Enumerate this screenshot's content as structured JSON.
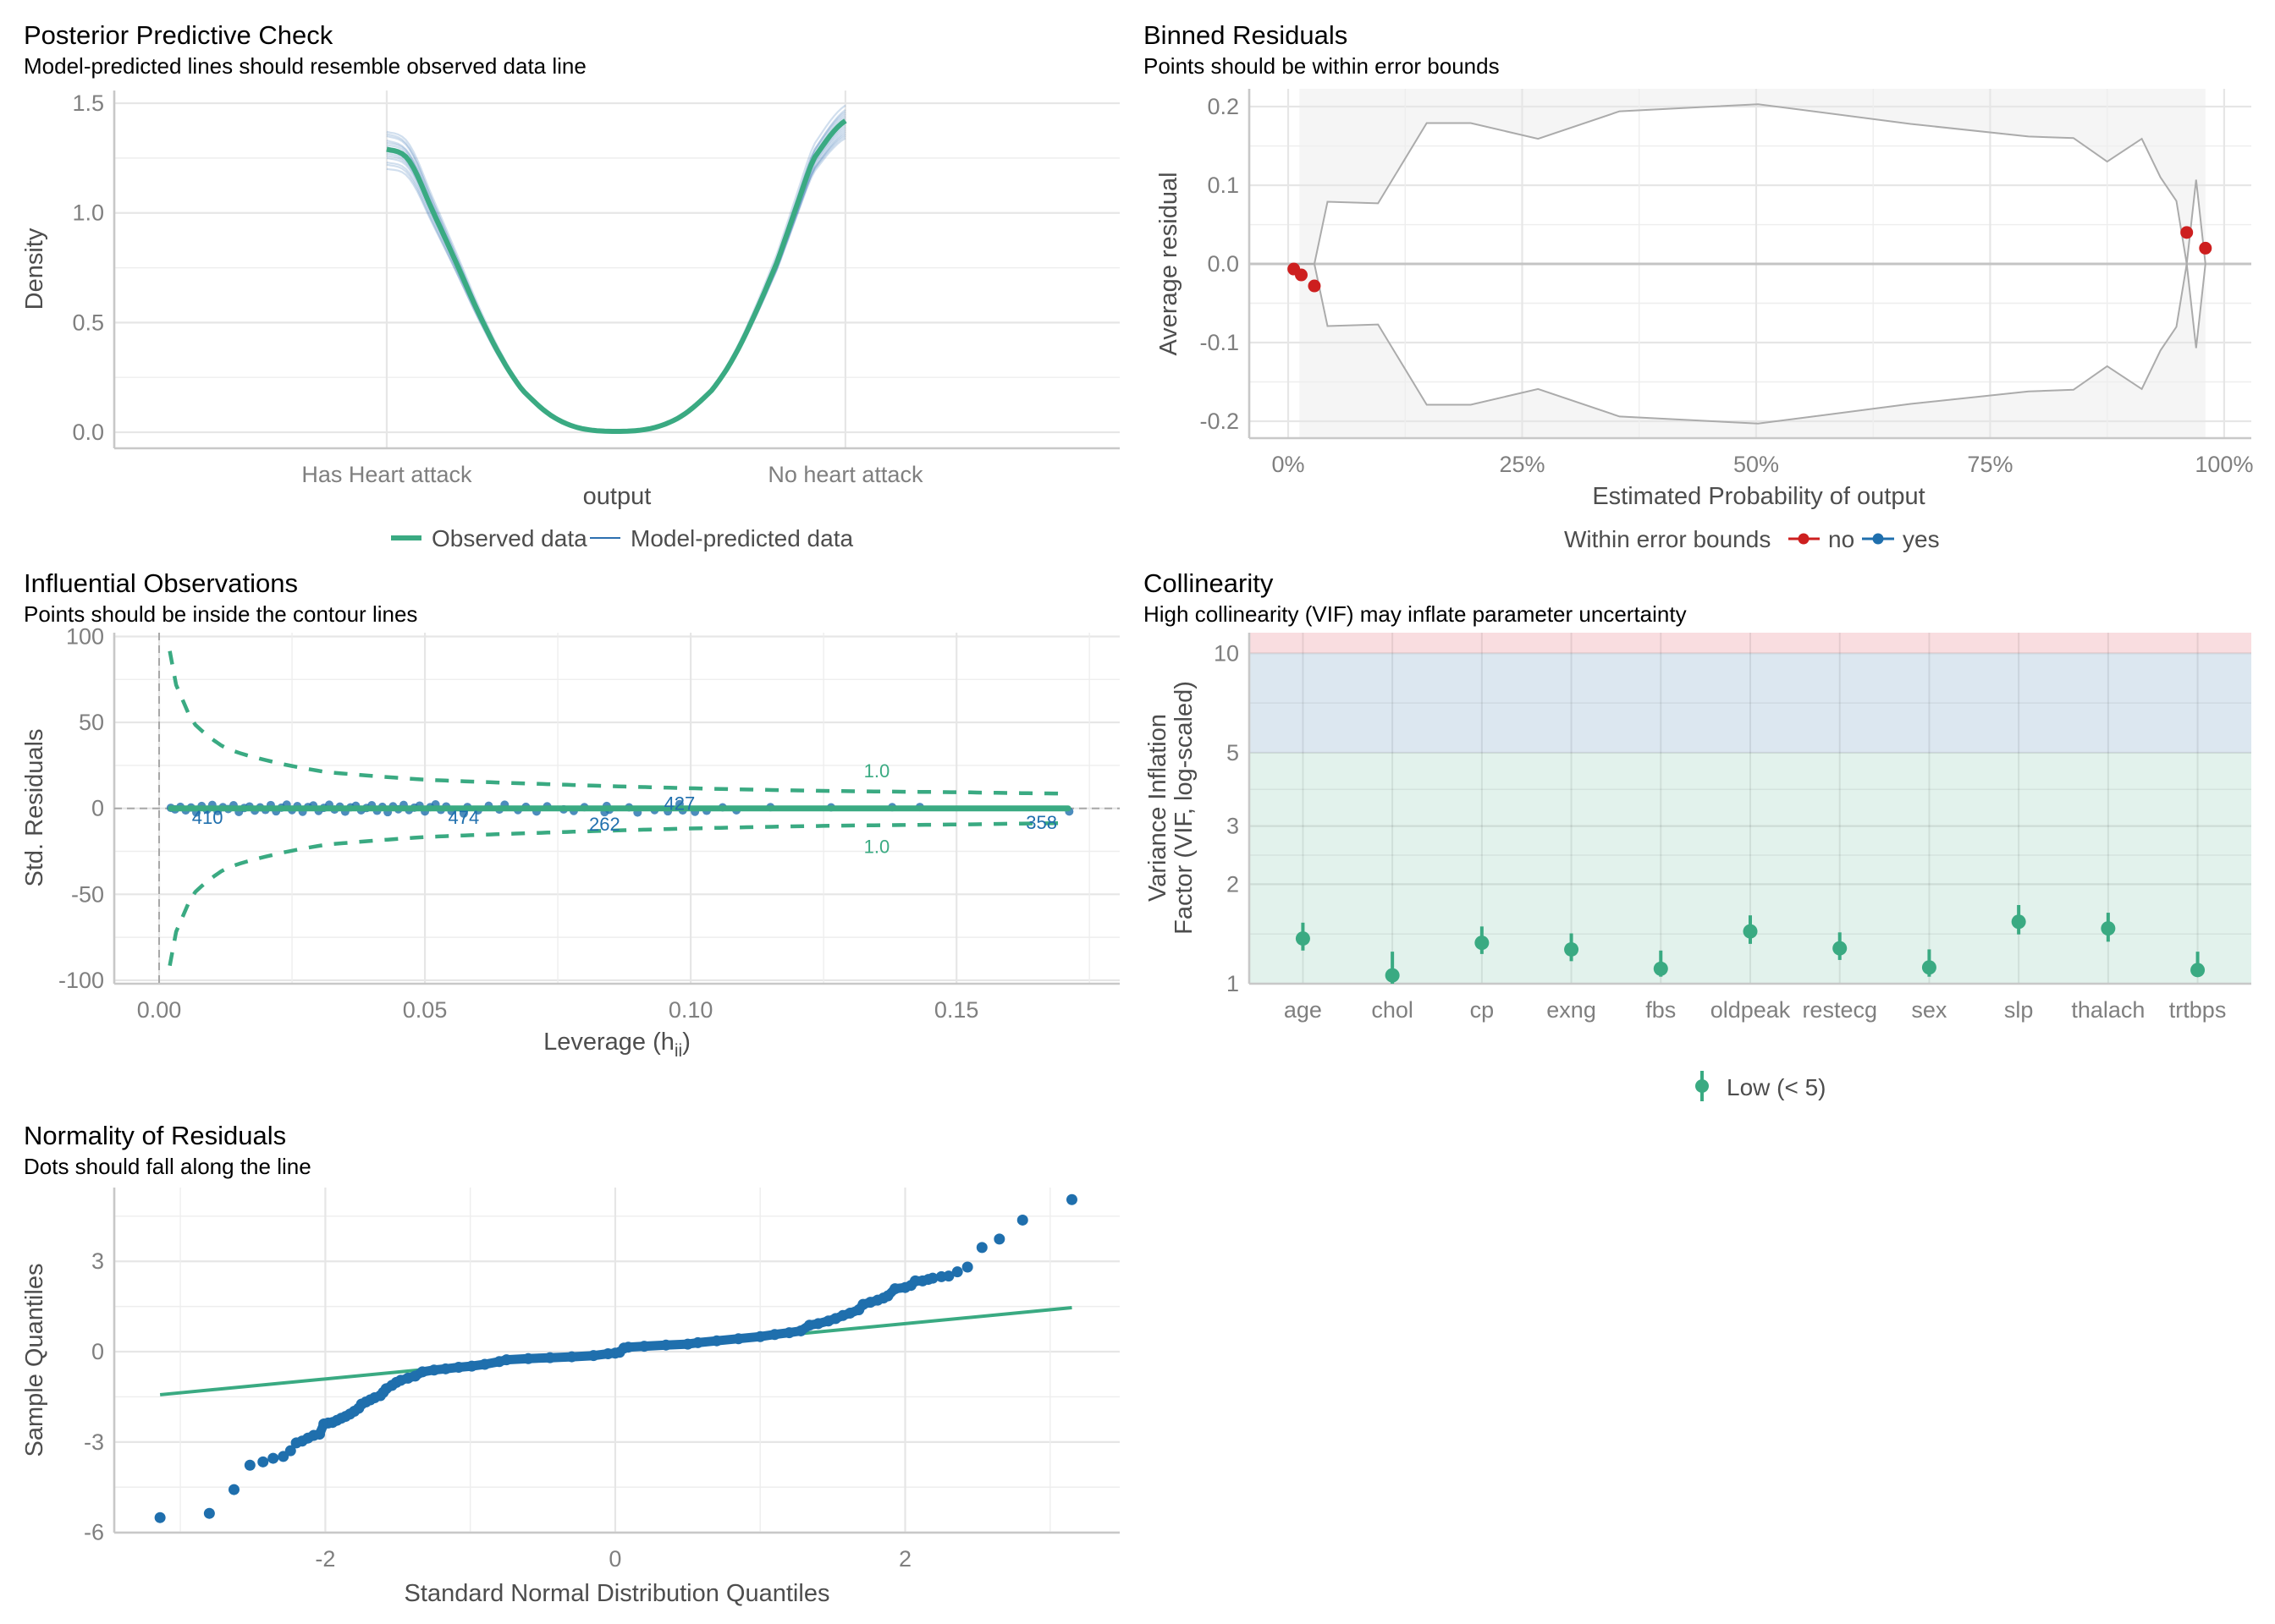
{
  "colors": {
    "observed": "#3aaa82",
    "predicted": "#2c6fb0",
    "points": "#1f6fad",
    "out_of_bounds": "#cd1f1f",
    "in_bounds": "#1f6fad",
    "band_grey": "#f5f5f5",
    "boundary": "#ababab",
    "vif_low": "#e2f2ec",
    "vif_moderate": "#dce7f0",
    "vif_high": "#f9dde0"
  },
  "chart_data": [
    {
      "id": "ppc",
      "type": "line",
      "title": "Posterior Predictive Check",
      "subtitle": "Model-predicted lines should resemble observed data line",
      "xlabel": "output",
      "ylabel": "Density",
      "categories": [
        "Has Heart attack",
        "No heart attack"
      ],
      "x_range": [
        -0.594,
        1.598
      ],
      "ylim": [
        -0.073,
        1.558
      ],
      "yticks": [
        0.0,
        0.5,
        1.0,
        1.5
      ],
      "ytick_labels": [
        "0.0",
        "0.5",
        "1.0",
        "1.5"
      ],
      "grid": true,
      "observed": {
        "x": [
          0,
          0.048,
          0.1,
          0.15,
          0.2,
          0.25,
          0.295,
          0.358,
          0.42,
          0.5,
          0.58,
          0.645,
          0.71,
          0.756,
          0.804,
          0.852,
          0.89,
          0.93,
          1.0
        ],
        "y": [
          1.29,
          1.24,
          1.01,
          0.78,
          0.545,
          0.34,
          0.194,
          0.077,
          0.019,
          0.004,
          0.019,
          0.077,
          0.194,
          0.34,
          0.545,
          0.78,
          1.01,
          1.245,
          1.42
        ]
      },
      "predicted_peaks": [
        [
          1.2,
          1.47
        ],
        [
          1.23,
          1.44
        ],
        [
          1.25,
          1.42
        ],
        [
          1.27,
          1.4
        ],
        [
          1.28,
          1.38
        ],
        [
          1.3,
          1.36
        ],
        [
          1.31,
          1.45
        ],
        [
          1.33,
          1.34
        ],
        [
          1.35,
          1.41
        ],
        [
          1.37,
          1.49
        ],
        [
          1.26,
          1.43
        ],
        [
          1.29,
          1.39
        ],
        [
          1.32,
          1.46
        ],
        [
          1.22,
          1.37
        ],
        [
          1.36,
          1.35
        ]
      ],
      "legend": {
        "position": "bottom",
        "items": [
          {
            "label": "Observed data",
            "series": "observed"
          },
          {
            "label": "Model-predicted data",
            "series": "predicted"
          }
        ]
      }
    },
    {
      "id": "binned",
      "type": "scatter",
      "title": "Binned Residuals",
      "subtitle": "Points should be within error bounds",
      "xlabel": "Estimated Probability of output",
      "ylabel": "Average residual",
      "xlim": [
        -4.16,
        102.9
      ],
      "ylim": [
        -0.2215,
        0.2226
      ],
      "xticks": [
        0,
        25,
        50,
        75,
        100
      ],
      "xtick_labels": [
        "0%",
        "25%",
        "50%",
        "75%",
        "100%"
      ],
      "xminor": [
        12.5,
        37.5,
        62.5,
        87.5
      ],
      "yticks": [
        -0.2,
        -0.1,
        0.0,
        0.1,
        0.2
      ],
      "ytick_labels": [
        "-0.2",
        "-0.1",
        "0.0",
        "0.1",
        "0.2"
      ],
      "yminor": [
        -0.15,
        -0.05,
        0.05,
        0.15
      ],
      "shaded_range": [
        1.2,
        98.0
      ],
      "bound_x": [
        0.6,
        2.8,
        4.2,
        9.6,
        14.8,
        19.5,
        26.7,
        35.4,
        50.2,
        66.5,
        79.1,
        83.9,
        87.5,
        91.2,
        93.2,
        94.9,
        96.0,
        97.0,
        98.0
      ],
      "bound_se": [
        0.0,
        0.0,
        0.079,
        0.077,
        0.179,
        0.179,
        0.159,
        0.194,
        0.203,
        0.178,
        0.162,
        0.16,
        0.13,
        0.159,
        0.11,
        0.08,
        0.0,
        0.107,
        0.0
      ],
      "points": [
        {
          "x": 0.6,
          "y": -0.0065,
          "within": "no"
        },
        {
          "x": 1.4,
          "y": -0.014,
          "within": "no"
        },
        {
          "x": 2.8,
          "y": -0.028,
          "within": "no"
        },
        {
          "x": 96.0,
          "y": 0.04,
          "within": "no"
        },
        {
          "x": 98.0,
          "y": 0.02,
          "within": "no"
        }
      ],
      "legend": {
        "position": "bottom",
        "title": "Within error bounds",
        "items": [
          {
            "label": "no",
            "color_key": "out_of_bounds"
          },
          {
            "label": "yes",
            "color_key": "in_bounds"
          }
        ]
      }
    },
    {
      "id": "influential",
      "type": "scatter",
      "title": "Influential Observations",
      "subtitle": "Points should be inside the contour lines",
      "xlabel": "Leverage (h",
      "xlabel_sub": "ii",
      "xlabel_close": ")",
      "ylabel": "Std. Residuals",
      "xlim": [
        -0.00844,
        0.1807
      ],
      "ylim": [
        -102,
        102.2
      ],
      "xticks": [
        0.0,
        0.05,
        0.1,
        0.15
      ],
      "xtick_labels": [
        "0.00",
        "0.05",
        "0.10",
        "0.15"
      ],
      "xminor": [
        0.025,
        0.075,
        0.125,
        0.175
      ],
      "yticks": [
        -100,
        -50,
        0,
        50,
        100
      ],
      "ytick_labels": [
        "-100",
        "-50",
        "0",
        "50",
        "100"
      ],
      "yminor": [
        -75,
        -25,
        25,
        75
      ],
      "reference_lines": {
        "x": 0,
        "y": 0
      },
      "contour_level": "1.0",
      "contour": {
        "h": [
          0.002,
          0.0029,
          0.0063,
          0.0124,
          0.0219,
          0.0314,
          0.05,
          0.0749,
          0.1,
          0.125,
          0.1496,
          0.1707
        ],
        "r": [
          91.5,
          73.7,
          50.2,
          35.2,
          26.7,
          21.1,
          16.7,
          13.9,
          11.7,
          10.2,
          9.4,
          8.6
        ]
      },
      "contour_label_pos": {
        "h": 0.135,
        "r": 22
      },
      "smooth": {
        "h": [
          0.0022,
          0.171
        ],
        "r": [
          0.0,
          0.0
        ]
      },
      "points": [
        [
          0.0022,
          0.3
        ],
        [
          0.003,
          -0.6
        ],
        [
          0.004,
          0.9
        ],
        [
          0.005,
          -1.2
        ],
        [
          0.006,
          0.5
        ],
        [
          0.007,
          -2.4
        ],
        [
          0.008,
          1.4
        ],
        [
          0.009,
          -0.8
        ],
        [
          0.01,
          2.0
        ],
        [
          0.011,
          -1.6
        ],
        [
          0.012,
          0.7
        ],
        [
          0.013,
          -0.4
        ],
        [
          0.014,
          1.8
        ],
        [
          0.015,
          -2.1
        ],
        [
          0.016,
          0.2
        ],
        [
          0.017,
          1.1
        ],
        [
          0.018,
          -1.3
        ],
        [
          0.019,
          0.6
        ],
        [
          0.02,
          -0.9
        ],
        [
          0.021,
          1.9
        ],
        [
          0.022,
          -1.7
        ],
        [
          0.023,
          0.4
        ],
        [
          0.024,
          2.2
        ],
        [
          0.025,
          -1.0
        ],
        [
          0.026,
          1.3
        ],
        [
          0.027,
          -2.0
        ],
        [
          0.028,
          0.8
        ],
        [
          0.029,
          1.7
        ],
        [
          0.03,
          -1.5
        ],
        [
          0.031,
          0.3
        ],
        [
          0.032,
          2.1
        ],
        [
          0.033,
          -0.7
        ],
        [
          0.034,
          1.0
        ],
        [
          0.035,
          -1.9
        ],
        [
          0.036,
          0.6
        ],
        [
          0.037,
          1.5
        ],
        [
          0.038,
          -1.1
        ],
        [
          0.039,
          0.2
        ],
        [
          0.04,
          1.8
        ],
        [
          0.041,
          -1.4
        ],
        [
          0.042,
          0.9
        ],
        [
          0.043,
          -2.2
        ],
        [
          0.044,
          1.2
        ],
        [
          0.045,
          -0.5
        ],
        [
          0.046,
          2.0
        ],
        [
          0.047,
          -1.0
        ],
        [
          0.048,
          0.4
        ],
        [
          0.049,
          1.6
        ],
        [
          0.05,
          -1.8
        ],
        [
          0.051,
          0.7
        ],
        [
          0.052,
          2.3
        ],
        [
          0.053,
          -0.9
        ],
        [
          0.054,
          1.1
        ],
        [
          0.055,
          -1.6
        ],
        [
          0.0573,
          -3.0
        ],
        [
          0.058,
          0.8
        ],
        [
          0.06,
          -1.2
        ],
        [
          0.062,
          1.5
        ],
        [
          0.064,
          -0.7
        ],
        [
          0.065,
          2.1
        ],
        [
          0.0675,
          -1.0
        ],
        [
          0.069,
          0.9
        ],
        [
          0.071,
          -1.8
        ],
        [
          0.073,
          1.2
        ],
        [
          0.0761,
          -0.6
        ],
        [
          0.078,
          -1.5
        ],
        [
          0.08,
          0.7
        ],
        [
          0.0838,
          -2.2
        ],
        [
          0.0842,
          1.4
        ],
        [
          0.0847,
          -0.8
        ],
        [
          0.0884,
          0.6
        ],
        [
          0.09,
          -2.4
        ],
        [
          0.0932,
          -1.0
        ],
        [
          0.0957,
          -1.7
        ],
        [
          0.0979,
          2.5
        ],
        [
          0.0985,
          -1.2
        ],
        [
          0.1008,
          -2.0
        ],
        [
          0.103,
          -1.4
        ],
        [
          0.106,
          0.6
        ],
        [
          0.1086,
          -1.1
        ],
        [
          0.115,
          0.7
        ],
        [
          0.1264,
          0.6
        ],
        [
          0.1379,
          0.7
        ],
        [
          0.1431,
          0.8
        ],
        [
          0.1712,
          -1.8
        ]
      ],
      "labels": [
        {
          "text": "410",
          "h": 0.0091,
          "r": -5
        },
        {
          "text": "474",
          "h": 0.0573,
          "r": -5
        },
        {
          "text": "262",
          "h": 0.0838,
          "r": -9
        },
        {
          "text": "427",
          "h": 0.0979,
          "r": 3
        },
        {
          "text": "358",
          "h": 0.166,
          "r": -8
        }
      ]
    },
    {
      "id": "collinearity",
      "type": "scatter",
      "title": "Collinearity",
      "subtitle": "High collinearity (VIF) may inflate parameter uncertainty",
      "xlabel": "",
      "ylabel_lines": [
        "Variance Inflation",
        "Factor (VIF, log-scaled)"
      ],
      "yscale": "log10",
      "ylim": [
        1,
        11.54
      ],
      "yticks": [
        1,
        2,
        3,
        5,
        10
      ],
      "ytick_labels": [
        "1",
        "2",
        "3",
        "5",
        "10"
      ],
      "yminor": [
        1.4142,
        2.449,
        3.873,
        7.071
      ],
      "bands": [
        {
          "from": 1,
          "to": 5,
          "color_key": "vif_low"
        },
        {
          "from": 5,
          "to": 10,
          "color_key": "vif_moderate"
        },
        {
          "from": 10,
          "to": 11.54,
          "color_key": "vif_high"
        }
      ],
      "categories": [
        "age",
        "chol",
        "cp",
        "exng",
        "fbs",
        "oldpeak",
        "restecg",
        "sex",
        "slp",
        "thalach",
        "trtbps"
      ],
      "vif": [
        1.37,
        1.06,
        1.33,
        1.27,
        1.11,
        1.44,
        1.28,
        1.12,
        1.54,
        1.47,
        1.1
      ],
      "ci_low": [
        1.26,
        1.0,
        1.23,
        1.17,
        1.05,
        1.32,
        1.18,
        1.05,
        1.41,
        1.34,
        1.05
      ],
      "ci_high": [
        1.53,
        1.25,
        1.49,
        1.42,
        1.26,
        1.61,
        1.43,
        1.27,
        1.73,
        1.64,
        1.25
      ],
      "legend": {
        "position": "bottom",
        "items": [
          {
            "label": "Low (< 5)",
            "color_key": "observed"
          }
        ]
      }
    },
    {
      "id": "qq",
      "type": "scatter",
      "title": "Normality of Residuals",
      "subtitle": "Dots should fall along the line",
      "xlabel": "Standard Normal Distribution Quantiles",
      "ylabel": "Sample Quantiles",
      "xlim": [
        -3.456,
        3.48
      ],
      "ylim": [
        -6.01,
        5.45
      ],
      "xticks": [
        -2,
        0,
        2
      ],
      "xtick_labels": [
        "-2",
        "0",
        "2"
      ],
      "xminor": [
        -3,
        -1,
        1,
        3
      ],
      "yticks": [
        -6,
        -3,
        0,
        3
      ],
      "ytick_labels": [
        "-6",
        "-3",
        "0",
        "3"
      ],
      "yminor": [
        -4.5,
        -1.5,
        1.5,
        4.5
      ],
      "reference_line": {
        "x": [
          -3.14,
          3.15
        ],
        "y": [
          -1.43,
          1.46
        ]
      },
      "points": [
        [
          -3.14,
          -5.51
        ],
        [
          -2.8,
          -5.37
        ],
        [
          -2.63,
          -4.58
        ],
        [
          -2.52,
          -3.77
        ],
        [
          -2.43,
          -3.66
        ],
        [
          -2.36,
          -3.54
        ],
        [
          -2.29,
          -3.48
        ],
        [
          -2.24,
          -3.29
        ],
        [
          -2.2,
          -3.03
        ],
        [
          -2.16,
          -2.97
        ],
        [
          -2.12,
          -2.87
        ],
        [
          -2.08,
          -2.78
        ],
        [
          -2.04,
          -2.74
        ],
        [
          -2.01,
          -2.4
        ],
        [
          -1.98,
          -2.37
        ],
        [
          -1.95,
          -2.35
        ],
        [
          -1.92,
          -2.28
        ],
        [
          -1.89,
          -2.21
        ],
        [
          -1.86,
          -2.15
        ],
        [
          -1.83,
          -2.07
        ],
        [
          -1.8,
          -1.98
        ],
        [
          -1.77,
          -1.88
        ],
        [
          -1.75,
          -1.74
        ],
        [
          -1.72,
          -1.67
        ],
        [
          -1.69,
          -1.6
        ],
        [
          -1.66,
          -1.53
        ],
        [
          -1.62,
          -1.46
        ],
        [
          -1.6,
          -1.35
        ],
        [
          -1.58,
          -1.23
        ],
        [
          -1.54,
          -1.12
        ],
        [
          -1.51,
          -1.02
        ],
        [
          -1.48,
          -0.95
        ],
        [
          -1.43,
          -0.88
        ],
        [
          -1.38,
          -0.81
        ],
        [
          -1.33,
          -0.67
        ],
        [
          -1.25,
          -0.61
        ],
        [
          -1.17,
          -0.57
        ],
        [
          -1.08,
          -0.52
        ],
        [
          -0.99,
          -0.48
        ],
        [
          -0.9,
          -0.42
        ],
        [
          -0.8,
          -0.33
        ],
        [
          -0.75,
          -0.27
        ],
        [
          -0.6,
          -0.23
        ],
        [
          -0.45,
          -0.2
        ],
        [
          -0.3,
          -0.17
        ],
        [
          -0.15,
          -0.13
        ],
        [
          -0.05,
          -0.07
        ],
        [
          0.0,
          -0.05
        ],
        [
          0.03,
          -0.02
        ],
        [
          0.06,
          0.12
        ],
        [
          0.09,
          0.15
        ],
        [
          0.2,
          0.18
        ],
        [
          0.35,
          0.22
        ],
        [
          0.5,
          0.25
        ],
        [
          0.57,
          0.3
        ],
        [
          0.7,
          0.36
        ],
        [
          0.85,
          0.43
        ],
        [
          1.0,
          0.5
        ],
        [
          1.1,
          0.57
        ],
        [
          1.2,
          0.63
        ],
        [
          1.28,
          0.69
        ],
        [
          1.34,
          0.88
        ],
        [
          1.4,
          0.93
        ],
        [
          1.47,
          1.02
        ],
        [
          1.52,
          1.1
        ],
        [
          1.57,
          1.2
        ],
        [
          1.62,
          1.28
        ],
        [
          1.68,
          1.39
        ],
        [
          1.71,
          1.57
        ],
        [
          1.76,
          1.64
        ],
        [
          1.81,
          1.71
        ],
        [
          1.85,
          1.78
        ],
        [
          1.88,
          1.85
        ],
        [
          1.93,
          2.09
        ],
        [
          2.0,
          2.13
        ],
        [
          2.04,
          2.2
        ],
        [
          2.07,
          2.35
        ],
        [
          2.12,
          2.35
        ],
        [
          2.16,
          2.4
        ],
        [
          2.19,
          2.44
        ],
        [
          2.25,
          2.49
        ],
        [
          2.3,
          2.51
        ],
        [
          2.36,
          2.65
        ],
        [
          2.43,
          2.81
        ],
        [
          2.53,
          3.46
        ],
        [
          2.65,
          3.74
        ],
        [
          2.81,
          4.37
        ],
        [
          3.15,
          5.05
        ]
      ]
    }
  ]
}
